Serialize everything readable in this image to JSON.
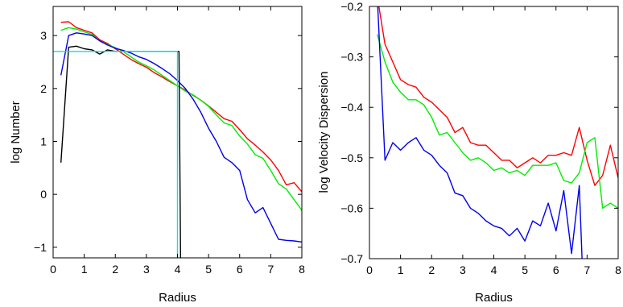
{
  "chart_data": [
    {
      "type": "line",
      "title": "",
      "xlabel": "Radius",
      "ylabel": "log Number",
      "xlim": [
        0,
        8
      ],
      "ylim": [
        -1.2,
        3.55
      ],
      "xticks": [
        0,
        1,
        2,
        3,
        4,
        5,
        6,
        7,
        8
      ],
      "yticks": [
        -1,
        0,
        1,
        2,
        3
      ],
      "xtick_labels": [
        "0",
        "1",
        "2",
        "3",
        "4",
        "5",
        "6",
        "7",
        "8"
      ],
      "ytick_labels": [
        "−1",
        "0",
        "1",
        "2",
        "3"
      ],
      "grid": false,
      "legend": "none",
      "series": [
        {
          "color": "#ff0000",
          "x": [
            0.25,
            0.5,
            0.75,
            1.0,
            1.25,
            1.5,
            1.75,
            2.0,
            2.25,
            2.5,
            2.75,
            3.0,
            3.25,
            3.5,
            3.75,
            4.0,
            4.25,
            4.5,
            4.75,
            5.0,
            5.25,
            5.5,
            5.75,
            6.0,
            6.25,
            6.5,
            6.75,
            7.0,
            7.25,
            7.5,
            7.75,
            8.0
          ],
          "y": [
            3.25,
            3.26,
            3.15,
            3.1,
            3.05,
            2.92,
            2.85,
            2.75,
            2.65,
            2.55,
            2.47,
            2.4,
            2.3,
            2.22,
            2.13,
            2.05,
            1.97,
            1.87,
            1.78,
            1.67,
            1.55,
            1.43,
            1.38,
            1.22,
            1.05,
            0.93,
            0.8,
            0.65,
            0.45,
            0.18,
            0.22,
            0.05
          ]
        },
        {
          "color": "#00ee00",
          "x": [
            0.25,
            0.5,
            0.75,
            1.0,
            1.25,
            1.5,
            1.75,
            2.0,
            2.25,
            2.5,
            2.75,
            3.0,
            3.25,
            3.5,
            3.75,
            4.0,
            4.25,
            4.5,
            4.75,
            5.0,
            5.25,
            5.5,
            5.75,
            6.0,
            6.25,
            6.5,
            6.75,
            7.0,
            7.25,
            7.5,
            7.75,
            8.0
          ],
          "y": [
            3.1,
            3.15,
            3.12,
            3.07,
            3.02,
            2.9,
            2.83,
            2.77,
            2.7,
            2.6,
            2.5,
            2.43,
            2.35,
            2.25,
            2.15,
            2.05,
            1.95,
            1.88,
            1.78,
            1.66,
            1.5,
            1.35,
            1.3,
            1.1,
            0.95,
            0.75,
            0.68,
            0.45,
            0.2,
            0.1,
            -0.1,
            -0.3
          ]
        },
        {
          "color": "#0000ee",
          "x": [
            0.25,
            0.5,
            0.75,
            1.0,
            1.25,
            1.5,
            1.75,
            2.0,
            2.25,
            2.5,
            2.75,
            3.0,
            3.25,
            3.5,
            3.75,
            4.0,
            4.25,
            4.5,
            4.75,
            5.0,
            5.25,
            5.5,
            5.75,
            6.0,
            6.25,
            6.5,
            6.75,
            7.0,
            7.25,
            7.5,
            7.75,
            8.0
          ],
          "y": [
            2.25,
            3.0,
            3.05,
            3.03,
            3.0,
            2.9,
            2.82,
            2.76,
            2.72,
            2.67,
            2.6,
            2.55,
            2.47,
            2.38,
            2.28,
            2.15,
            2.0,
            1.8,
            1.55,
            1.25,
            1.0,
            0.7,
            0.6,
            0.45,
            -0.1,
            -0.35,
            -0.25,
            -0.55,
            -0.85,
            -0.87,
            -0.88,
            -0.9
          ]
        },
        {
          "color": "#000000",
          "x": [
            0.25,
            0.5,
            0.75,
            1.0,
            1.25,
            1.5,
            1.75,
            2.0,
            2.25,
            2.5,
            2.75,
            3.0,
            3.25,
            3.5,
            3.75,
            3.85,
            4.05,
            4.1
          ],
          "y": [
            0.6,
            2.78,
            2.8,
            2.75,
            2.73,
            2.65,
            2.73,
            2.7,
            2.7,
            2.7,
            2.7,
            2.7,
            2.7,
            2.7,
            2.7,
            2.7,
            2.7,
            -1.3
          ]
        },
        {
          "color": "#00e5e5",
          "x": [
            0.0,
            4.0,
            4.0
          ],
          "y": [
            2.7,
            2.7,
            -1.3
          ]
        }
      ]
    },
    {
      "type": "line",
      "title": "",
      "xlabel": "Radius",
      "ylabel": "log Velocity Dispersion",
      "xlim": [
        0,
        8
      ],
      "ylim": [
        -0.7,
        -0.2
      ],
      "xticks": [
        0,
        1,
        2,
        3,
        4,
        5,
        6,
        7,
        8
      ],
      "yticks": [
        -0.7,
        -0.6,
        -0.5,
        -0.4,
        -0.3,
        -0.2
      ],
      "xtick_labels": [
        "0",
        "1",
        "2",
        "3",
        "4",
        "5",
        "6",
        "7",
        "8"
      ],
      "ytick_labels": [
        "−0.7",
        "−0.6",
        "−0.5",
        "−0.4",
        "−0.3",
        "−0.2"
      ],
      "grid": false,
      "legend": "none",
      "series": [
        {
          "color": "#ff0000",
          "x": [
            0.25,
            0.5,
            0.75,
            1.0,
            1.25,
            1.5,
            1.75,
            2.0,
            2.25,
            2.5,
            2.75,
            3.0,
            3.25,
            3.5,
            3.75,
            4.0,
            4.25,
            4.5,
            4.75,
            5.0,
            5.25,
            5.5,
            5.75,
            6.0,
            6.25,
            6.5,
            6.75,
            7.0,
            7.25,
            7.5,
            7.75,
            8.0
          ],
          "y": [
            -0.18,
            -0.275,
            -0.31,
            -0.345,
            -0.355,
            -0.36,
            -0.38,
            -0.39,
            -0.405,
            -0.42,
            -0.45,
            -0.44,
            -0.47,
            -0.475,
            -0.475,
            -0.49,
            -0.505,
            -0.505,
            -0.52,
            -0.51,
            -0.5,
            -0.51,
            -0.495,
            -0.495,
            -0.49,
            -0.495,
            -0.44,
            -0.505,
            -0.555,
            -0.535,
            -0.475,
            -0.54
          ]
        },
        {
          "color": "#00ee00",
          "x": [
            0.25,
            0.5,
            0.75,
            1.0,
            1.25,
            1.5,
            1.75,
            2.0,
            2.25,
            2.5,
            2.75,
            3.0,
            3.25,
            3.5,
            3.75,
            4.0,
            4.25,
            4.5,
            4.75,
            5.0,
            5.25,
            5.5,
            5.75,
            6.0,
            6.25,
            6.5,
            6.75,
            7.0,
            7.25,
            7.5,
            7.75,
            8.0
          ],
          "y": [
            -0.255,
            -0.31,
            -0.35,
            -0.37,
            -0.385,
            -0.385,
            -0.395,
            -0.42,
            -0.455,
            -0.45,
            -0.47,
            -0.49,
            -0.505,
            -0.5,
            -0.51,
            -0.525,
            -0.52,
            -0.53,
            -0.525,
            -0.535,
            -0.515,
            -0.515,
            -0.515,
            -0.51,
            -0.545,
            -0.55,
            -0.53,
            -0.47,
            -0.46,
            -0.6,
            -0.59,
            -0.6
          ]
        },
        {
          "color": "#0000ee",
          "x": [
            0.25,
            0.5,
            0.75,
            1.0,
            1.25,
            1.5,
            1.75,
            2.0,
            2.25,
            2.5,
            2.75,
            3.0,
            3.25,
            3.5,
            3.75,
            4.0,
            4.25,
            4.5,
            4.75,
            5.0,
            5.25,
            5.5,
            5.75,
            6.0,
            6.25,
            6.5,
            6.75,
            6.85
          ],
          "y": [
            -0.18,
            -0.505,
            -0.47,
            -0.485,
            -0.47,
            -0.46,
            -0.485,
            -0.495,
            -0.515,
            -0.53,
            -0.57,
            -0.575,
            -0.6,
            -0.61,
            -0.625,
            -0.635,
            -0.64,
            -0.655,
            -0.64,
            -0.665,
            -0.625,
            -0.635,
            -0.59,
            -0.645,
            -0.565,
            -0.69,
            -0.555,
            -0.72
          ]
        }
      ]
    }
  ]
}
